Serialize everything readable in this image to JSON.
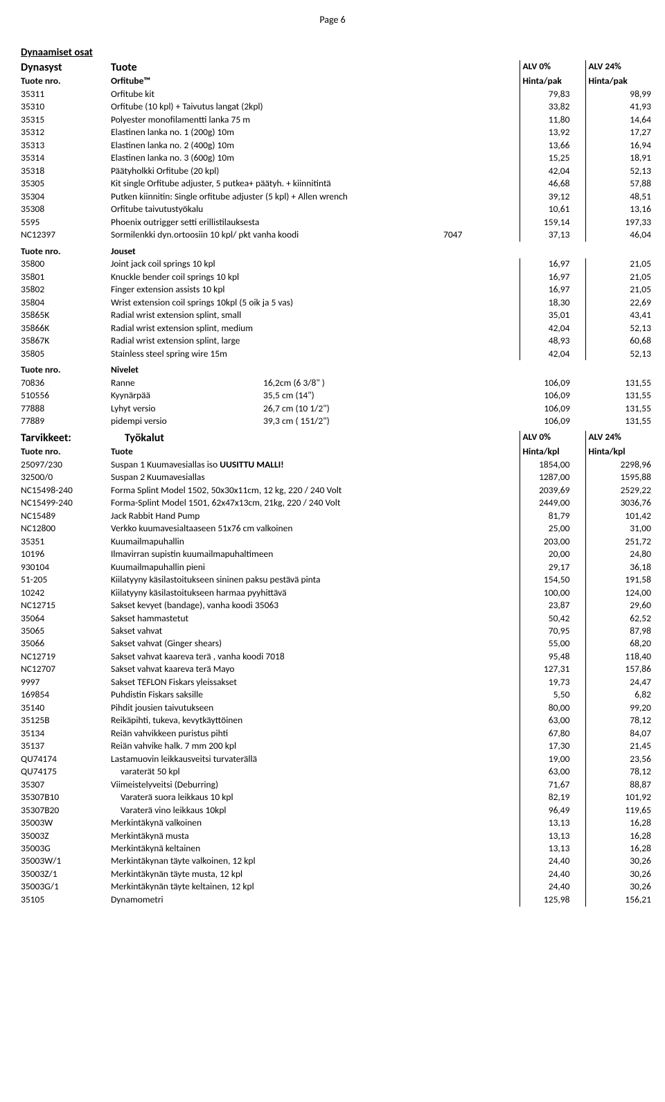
{
  "page": "Page 6",
  "section1": {
    "title": "Dynaamiset osat",
    "header": {
      "c1": "Dynasyst",
      "c2": "Tuote",
      "c4": "ALV 0%",
      "c5": "ALV 24%"
    },
    "sub": {
      "c1": "Tuote nro.",
      "c2": "Orfitube™",
      "c4": "Hinta/pak",
      "c5": "Hinta/pak"
    },
    "rows": [
      {
        "c": "35311",
        "d": "Orfitube kit",
        "m": "",
        "p1": "79,83",
        "p2": "98,99"
      },
      {
        "c": "35310",
        "d": "Orfitube (10 kpl) + Taivutus langat (2kpl)",
        "m": "",
        "p1": "33,82",
        "p2": "41,93"
      },
      {
        "c": "35315",
        "d": "Polyester monofilamentti lanka 75 m",
        "m": "",
        "p1": "11,80",
        "p2": "14,64"
      },
      {
        "c": "35312",
        "d": "Elastinen lanka no. 1 (200g) 10m",
        "m": "",
        "p1": "13,92",
        "p2": "17,27"
      },
      {
        "c": "35313",
        "d": "Elastinen lanka no. 2 (400g) 10m",
        "m": "",
        "p1": "13,66",
        "p2": "16,94"
      },
      {
        "c": "35314",
        "d": "Elastinen lanka no. 3 (600g) 10m",
        "m": "",
        "p1": "15,25",
        "p2": "18,91"
      },
      {
        "c": "35318",
        "d": "Päätyholkki Orfitube (20 kpl)",
        "m": "",
        "p1": "42,04",
        "p2": "52,13"
      },
      {
        "c": "35305",
        "d": "Kit single Orfitube adjuster, 5 putkea+ päätyh. + kiinnitintä",
        "m": "",
        "p1": "46,68",
        "p2": "57,88"
      },
      {
        "c": "35304",
        "d": "Putken kiinnitin: Single orfitube adjuster (5 kpl) + Allen wrench",
        "m": "",
        "p1": "39,12",
        "p2": "48,51"
      },
      {
        "c": "35308",
        "d": "Orfitube taivutustyökalu",
        "m": "",
        "p1": "10,61",
        "p2": "13,16"
      },
      {
        "c": "5595",
        "d": "Phoenix outrigger setti erillistilauksesta",
        "m": "",
        "p1": "159,14",
        "p2": "197,33"
      },
      {
        "c": "NC12397",
        "d": "Sormilenkki dyn.ortoosiin 10 kpl/ pkt  vanha koodi",
        "m": "7047",
        "p1": "37,13",
        "p2": "46,04"
      }
    ]
  },
  "section2": {
    "sub": {
      "c1": "Tuote nro.",
      "c2": "Jouset"
    },
    "rows": [
      {
        "c": "35800",
        "d": "Joint jack coil springs 10 kpl",
        "p1": "16,97",
        "p2": "21,05"
      },
      {
        "c": "35801",
        "d": "Knuckle bender coil springs 10 kpl",
        "p1": "16,97",
        "p2": "21,05"
      },
      {
        "c": "35802",
        "d": "Finger extension assists 10 kpl",
        "p1": "16,97",
        "p2": "21,05"
      },
      {
        "c": "35804",
        "d": "Wrist extension coil springs 10kpl (5 oik ja 5 vas)",
        "p1": "18,30",
        "p2": "22,69"
      },
      {
        "c": "35865K",
        "d": "Radial wrist extension splint, small",
        "p1": "35,01",
        "p2": "43,41"
      },
      {
        "c": "35866K",
        "d": "Radial wrist extension splint, medium",
        "p1": "42,04",
        "p2": "52,13"
      },
      {
        "c": "35867K",
        "d": "Radial wrist extension splint, large",
        "p1": "48,93",
        "p2": "60,68"
      },
      {
        "c": "35805",
        "d": "Stainless steel spring wire 15m",
        "p1": "42,04",
        "p2": "52,13"
      }
    ]
  },
  "section3": {
    "sub": {
      "c1": "Tuote nro.",
      "c2": "Nivelet"
    },
    "rows": [
      {
        "c": "70836",
        "d": "Ranne",
        "m": "16,2cm (6 3/8\" )",
        "p1": "106,09",
        "p2": "131,55"
      },
      {
        "c": "510556",
        "d": "Kyynärpää",
        "m": "35,5 cm (14\")",
        "p1": "106,09",
        "p2": "131,55"
      },
      {
        "c": "77888",
        "d": "Lyhyt versio",
        "m": "26,7 cm (10 1/2\")",
        "p1": "106,09",
        "p2": "131,55"
      },
      {
        "c": "77889",
        "d": "pidempi versio",
        "m": "39,3 cm  ( 151/2\")",
        "p1": "106,09",
        "p2": "131,55"
      }
    ]
  },
  "section4": {
    "header": {
      "c1": "Tarvikkeet:",
      "c2": "Työkalut",
      "c4": "ALV 0%",
      "c5": "ALV 24%"
    },
    "sub": {
      "c1": "Tuote nro.",
      "c2": "Tuote",
      "c4": "Hinta/kpl",
      "c5": "Hinta/kpl"
    },
    "rows": [
      {
        "c": "25097/230",
        "d": "Suspan 1 Kuumavesiallas iso       <b>UUSITTU MALLI!</b>",
        "p1": "1854,00",
        "p2": "2298,96"
      },
      {
        "c": "32500/0",
        "d": "Suspan 2 Kuumavesiallas",
        "p1": "1287,00",
        "p2": "1595,88"
      },
      {
        "c": "NC15498-240",
        "d": "Forma Splint Model 1502, 50x30x11cm, 12 kg,  220 / 240 Volt",
        "p1": "2039,69",
        "p2": "2529,22"
      },
      {
        "c": "NC15499-240",
        "d": "Forma-Splint Model 1501, 62x47x13cm, 21kg, 220 / 240 Volt",
        "p1": "2449,00",
        "p2": "3036,76"
      },
      {
        "c": "NC15489",
        "d": "Jack Rabbit Hand Pump",
        "p1": "81,79",
        "p2": "101,42"
      },
      {
        "c": "NC12800",
        "d": "Verkko kuumavesialtaaseen 51x76 cm valkoinen",
        "p1": "25,00",
        "p2": "31,00"
      },
      {
        "c": "35351",
        "d": "Kuumailmapuhallin",
        "p1": "203,00",
        "p2": "251,72"
      },
      {
        "c": "10196",
        "d": "Ilmavirran supistin kuumailmapuhaltimeen",
        "p1": "20,00",
        "p2": "24,80"
      },
      {
        "c": "930104",
        "d": "Kuumailmapuhallin pieni",
        "p1": "29,17",
        "p2": "36,18"
      },
      {
        "c": "51-205",
        "d": "Kiilatyyny käsilastoitukseen sininen paksu pestävä pinta",
        "p1": "154,50",
        "p2": "191,58"
      },
      {
        "c": "10242",
        "d": "Kiilatyyny käsilastoitukseen harmaa pyyhittävä",
        "p1": "100,00",
        "p2": "124,00"
      },
      {
        "c": "NC12715",
        "d": "Sakset kevyet (bandage), vanha koodi 35063",
        "p1": "23,87",
        "p2": "29,60"
      },
      {
        "c": "35064",
        "d": "Sakset hammastetut",
        "p1": "50,42",
        "p2": "62,52"
      },
      {
        "c": "35065",
        "d": "Sakset vahvat",
        "p1": "70,95",
        "p2": "87,98"
      },
      {
        "c": "35066",
        "d": "Sakset vahvat (Ginger shears)",
        "p1": "55,00",
        "p2": "68,20"
      },
      {
        "c": "NC12719",
        "d": "Sakset vahvat kaareva terä , vanha koodi 7018",
        "p1": "95,48",
        "p2": "118,40"
      },
      {
        "c": "NC12707",
        "d": "Sakset vahvat kaareva terä  Mayo",
        "p1": "127,31",
        "p2": "157,86"
      },
      {
        "c": "9997",
        "d": "Sakset TEFLON Fiskars yleissakset",
        "p1": "19,73",
        "p2": "24,47"
      },
      {
        "c": "169854",
        "d": "Puhdistin Fiskars saksille",
        "p1": "5,50",
        "p2": "6,82"
      },
      {
        "c": "35140",
        "d": "Pihdit jousien taivutukseen",
        "p1": "80,00",
        "p2": "99,20"
      },
      {
        "c": "35125B",
        "d": "Reikäpihti, tukeva, kevytkäyttöinen",
        "p1": "63,00",
        "p2": "78,12"
      },
      {
        "c": "35134",
        "d": "Reiän vahvikkeen puristus pihti",
        "p1": "67,80",
        "p2": "84,07"
      },
      {
        "c": "35137",
        "d": "Reiän vahvike halk. 7 mm 200 kpl",
        "p1": "17,30",
        "p2": "21,45"
      },
      {
        "c": "QU74174",
        "d": "Lastamuovin leikkausveitsi turvaterällä",
        "p1": "19,00",
        "p2": "23,56"
      },
      {
        "c": "QU74175",
        "d": "<span class=\"indent\">varaterät 50 kpl</span>",
        "p1": "63,00",
        "p2": "78,12"
      },
      {
        "c": "35307",
        "d": "Viimeistelyveitsi (Deburring)",
        "p1": "71,67",
        "p2": "88,87"
      },
      {
        "c": "35307B10",
        "d": "<span class=\"indent\">Varaterä suora leikkaus 10 kpl</span>",
        "p1": "82,19",
        "p2": "101,92"
      },
      {
        "c": "35307B20",
        "d": "<span class=\"indent\">Varaterä vino leikkaus 10kpl</span>",
        "p1": "96,49",
        "p2": "119,65"
      },
      {
        "c": "35003W",
        "d": "Merkintäkynä valkoinen",
        "p1": "13,13",
        "p2": "16,28"
      },
      {
        "c": "35003Z",
        "d": "Merkintäkynä musta",
        "p1": "13,13",
        "p2": "16,28"
      },
      {
        "c": "35003G",
        "d": "Merkintäkynä keltainen",
        "p1": "13,13",
        "p2": "16,28"
      },
      {
        "c": "35003W/1",
        "d": "Merkintäkynan täyte valkoinen, 12 kpl",
        "p1": "24,40",
        "p2": "30,26"
      },
      {
        "c": "35003Z/1",
        "d": "Merkintäkynän täyte musta, 12 kpl",
        "p1": "24,40",
        "p2": "30,26"
      },
      {
        "c": "35003G/1",
        "d": "Merkintäkynän täyte keltainen, 12 kpl",
        "p1": "24,40",
        "p2": "30,26"
      },
      {
        "c": "35105",
        "d": "Dynamometri",
        "p1": "125,98",
        "p2": "156,21"
      }
    ]
  }
}
